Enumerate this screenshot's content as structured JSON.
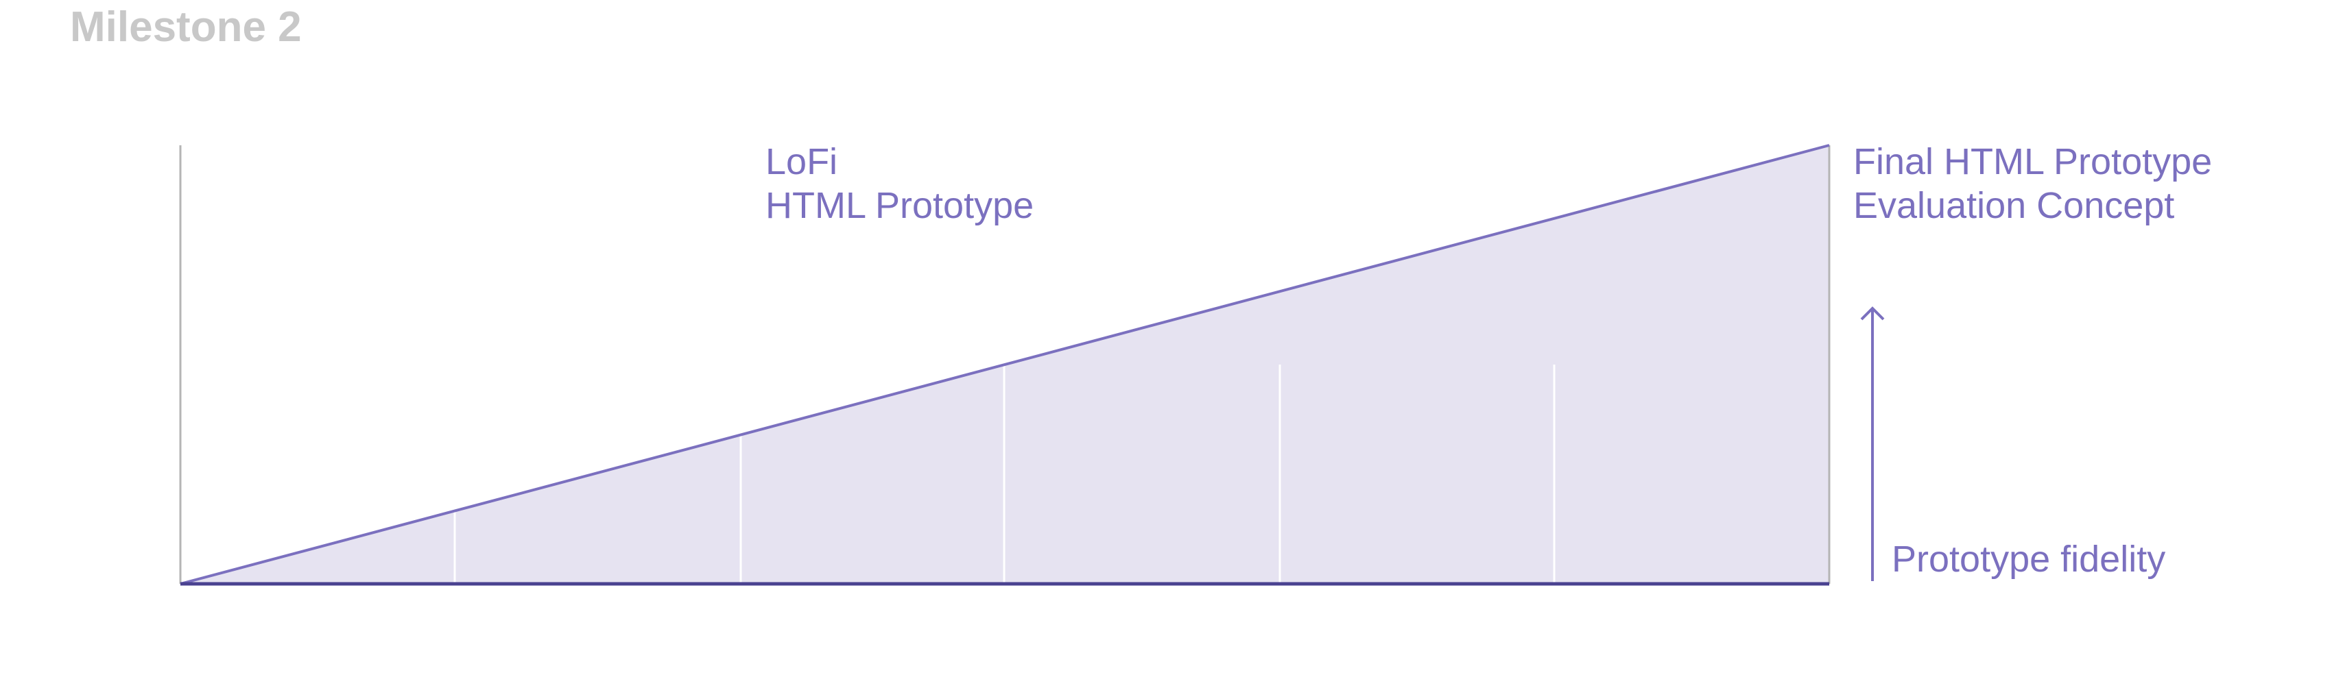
{
  "title": "Milestone 2",
  "colors": {
    "accent": "#7b70bf",
    "fill": "#e6e3f1",
    "title": "#c8c8c8",
    "axis": "#4a4290",
    "left_axis": "#b5b5b5",
    "divider": "#ffffff"
  },
  "labels": {
    "lofi_line1": "LoFi",
    "lofi_line2": "HTML Prototype",
    "final_line1": "Final HTML Prototype",
    "final_line2": "Evaluation Concept",
    "fidelity_axis": "Prototype fidelity"
  },
  "icons": {
    "fidelity_arrow": "arrow-up-icon"
  }
}
